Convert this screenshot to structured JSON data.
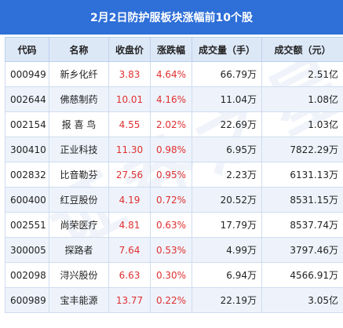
{
  "title": "2月2日防护服板块涨幅前10个股",
  "headers": [
    "代码",
    "名称",
    "收盘价",
    "涨跌幅",
    "成交量（手）",
    "成交额（元）"
  ],
  "rows": [
    {
      "code": "000949",
      "name": "新乡化纤",
      "close": "3.83",
      "change": "4.64%",
      "volume": "66.79万",
      "amount": "2.51亿"
    },
    {
      "code": "002644",
      "name": "佛慈制药",
      "close": "10.01",
      "change": "4.16%",
      "volume": "11.04万",
      "amount": "1.08亿"
    },
    {
      "code": "002154",
      "name": "报 喜 鸟",
      "close": "4.55",
      "change": "2.02%",
      "volume": "22.69万",
      "amount": "1.03亿"
    },
    {
      "code": "300410",
      "name": "正业科技",
      "close": "11.30",
      "change": "0.98%",
      "volume": "6.95万",
      "amount": "7822.29万"
    },
    {
      "code": "002832",
      "name": "比音勒芬",
      "close": "27.56",
      "change": "0.95%",
      "volume": "2.23万",
      "amount": "6131.13万"
    },
    {
      "code": "600400",
      "name": "红豆股份",
      "close": "4.19",
      "change": "0.72%",
      "volume": "20.52万",
      "amount": "8531.15万"
    },
    {
      "code": "002551",
      "name": "尚荣医疗",
      "close": "4.81",
      "change": "0.63%",
      "volume": "17.79万",
      "amount": "8537.74万"
    },
    {
      "code": "300005",
      "name": "探路者",
      "close": "7.64",
      "change": "0.53%",
      "volume": "4.99万",
      "amount": "3797.46万"
    },
    {
      "code": "002098",
      "name": "浔兴股份",
      "close": "6.63",
      "change": "0.30%",
      "volume": "6.94万",
      "amount": "4566.91万"
    },
    {
      "code": "600989",
      "name": "宝丰能源",
      "close": "13.77",
      "change": "0.22%",
      "volume": "22.19万",
      "amount": "3.05亿"
    }
  ],
  "colors": {
    "header_bg": "#2e6fd8",
    "positive": "#e03030",
    "alt_row": "#eef3fb"
  }
}
